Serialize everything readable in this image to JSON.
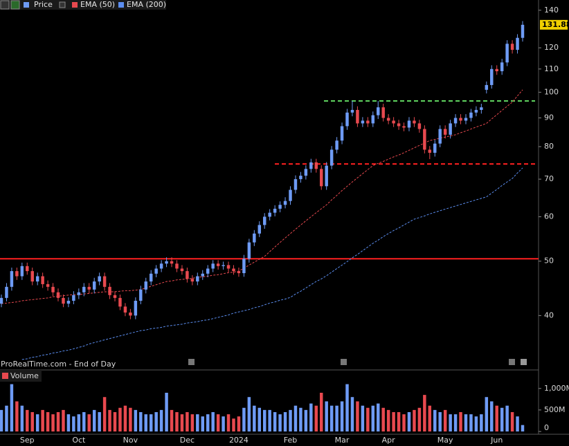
{
  "chart_data": [
    {
      "type": "candlestick",
      "name": "Price",
      "log": true,
      "source": "ProRealTime.com - End of Day",
      "up_color": "#6e9bf5",
      "down_color": "#e8494f",
      "categories": [
        null,
        null,
        null,
        null,
        null,
        "Sep",
        null,
        null,
        null,
        null,
        null,
        null,
        null,
        null,
        null,
        "Oct",
        null,
        null,
        null,
        null,
        null,
        null,
        null,
        null,
        null,
        "Nov",
        null,
        null,
        null,
        null,
        null,
        null,
        null,
        null,
        null,
        null,
        "Dec",
        null,
        null,
        null,
        null,
        null,
        null,
        null,
        null,
        null,
        "2024",
        null,
        null,
        null,
        null,
        null,
        null,
        null,
        null,
        null,
        "Feb",
        null,
        null,
        null,
        null,
        null,
        null,
        null,
        null,
        null,
        "Mar",
        null,
        null,
        null,
        null,
        null,
        null,
        null,
        null,
        "Apr",
        null,
        null,
        null,
        null,
        null,
        null,
        null,
        null,
        null,
        null,
        "May",
        null,
        null,
        null,
        null,
        null,
        null,
        null,
        null,
        null,
        "Jun",
        null,
        null,
        null,
        null,
        null
      ],
      "open": [
        42,
        43,
        45,
        48,
        47,
        49,
        48,
        46,
        47,
        45.5,
        45,
        44,
        43,
        42,
        42.5,
        43.5,
        44,
        45,
        44.5,
        46,
        47,
        45,
        43.5,
        43,
        41.5,
        40.5,
        40,
        42.5,
        44.5,
        46,
        47.5,
        48.5,
        49.5,
        50,
        49.5,
        48.5,
        48,
        46.5,
        46,
        47,
        47.5,
        48.5,
        49.5,
        49,
        49.2,
        48.5,
        48,
        47.6,
        50.5,
        54,
        56,
        58,
        60,
        61,
        62,
        63,
        64,
        67,
        70,
        71,
        73,
        75,
        73,
        68,
        74,
        79,
        82,
        87,
        92,
        93,
        88,
        89,
        88,
        91,
        94,
        90,
        89,
        88,
        87,
        86.5,
        89,
        88,
        86,
        79,
        78,
        81,
        86,
        84,
        88,
        90,
        89,
        90,
        92,
        93,
        101,
        103,
        110,
        109,
        113,
        122,
        119,
        125
      ],
      "high": [
        43.6,
        45.7,
        48.7,
        48.7,
        49.7,
        49.7,
        48.7,
        47.7,
        47.7,
        46.2,
        45.7,
        44.7,
        43.6,
        43.1,
        44.2,
        44.7,
        45.7,
        45.7,
        46.7,
        47.7,
        47.7,
        45.7,
        44.2,
        43.6,
        42.1,
        41.1,
        43.1,
        45.2,
        46.7,
        48.2,
        49.2,
        50.2,
        50.8,
        50.8,
        50.2,
        49.2,
        48.7,
        47.2,
        47.7,
        48.2,
        49.2,
        50.2,
        50.2,
        49.9,
        49.9,
        49.2,
        48.7,
        51.3,
        54.8,
        56.8,
        58.9,
        60.9,
        61.9,
        62.9,
        63.9,
        65,
        68,
        71.1,
        72.1,
        74.1,
        76.1,
        76.1,
        74.1,
        75.1,
        80.2,
        83.2,
        88.3,
        93.4,
        96.5,
        94.4,
        90.3,
        90.3,
        92.4,
        96.5,
        95.4,
        91.4,
        90.3,
        89.3,
        88.3,
        90.3,
        90.3,
        89.3,
        87.3,
        80.2,
        82.2,
        87.3,
        87.3,
        89.3,
        91.4,
        91.4,
        91.4,
        93.4,
        94.4,
        95.4,
        104.5,
        111.7,
        111.7,
        114.7,
        123.8,
        123.8,
        126.9,
        133.9
      ],
      "low": [
        41.4,
        42.4,
        44.3,
        46.3,
        46.3,
        47.3,
        45.3,
        45.3,
        44.8,
        44.3,
        43.3,
        42.4,
        41.4,
        41.4,
        41.9,
        42.8,
        43.3,
        43.8,
        43.8,
        45.3,
        44.3,
        42.8,
        42.4,
        40.9,
        39.9,
        39.4,
        39.4,
        41.9,
        43.8,
        45.3,
        46.8,
        47.8,
        48.8,
        48.8,
        47.8,
        47.3,
        45.8,
        45.3,
        45.3,
        46.3,
        46.8,
        47.8,
        48.3,
        48.3,
        47.8,
        47.3,
        46.9,
        46.9,
        49.7,
        53.2,
        55.2,
        57.1,
        59.1,
        60.1,
        61.1,
        62.1,
        63,
        66,
        69,
        69.9,
        71.9,
        71.9,
        67,
        67,
        72.9,
        77.8,
        80.8,
        85.7,
        90.6,
        86.7,
        86.7,
        86.7,
        86.7,
        89.6,
        88.7,
        87.7,
        86.7,
        85.7,
        85.2,
        85.2,
        86.7,
        84.7,
        77.8,
        76,
        76.8,
        79.8,
        82.7,
        82.7,
        86.7,
        87.7,
        87.7,
        88.7,
        90.6,
        91.6,
        99.5,
        101.5,
        107.4,
        107.4,
        111.3,
        117.2,
        117.2,
        123.1
      ],
      "close": [
        43,
        45,
        48,
        47,
        49,
        48,
        46,
        47,
        45.5,
        45,
        44,
        43,
        42,
        42.5,
        43.5,
        44,
        45,
        44.5,
        46,
        47,
        45,
        43.5,
        43,
        41.5,
        40.5,
        40,
        42.5,
        44.5,
        46,
        47.5,
        48.5,
        49.5,
        50,
        49.5,
        48.5,
        48,
        46.5,
        46,
        47,
        47.5,
        48.5,
        49.5,
        49,
        49.2,
        48.5,
        48,
        47.6,
        50.5,
        54,
        56,
        58,
        60,
        61,
        62,
        63,
        64,
        67,
        70,
        71,
        73,
        75,
        73,
        68,
        74,
        79,
        82,
        87,
        92,
        93,
        88,
        89,
        88,
        91,
        94,
        90,
        89,
        88,
        87,
        86.5,
        89,
        88,
        86,
        79,
        78,
        81,
        86,
        84,
        88,
        90,
        89,
        90,
        92,
        93,
        94,
        103,
        110,
        109,
        113,
        122,
        119,
        125,
        131.88
      ],
      "series": [
        {
          "name": "EMA (50)",
          "color": "#e8494f",
          "values": [
            42,
            42.1,
            42.2,
            42.3,
            42.5,
            42.6,
            42.7,
            42.8,
            42.9,
            43.0,
            43.2,
            43.3,
            43.4,
            43.5,
            43.6,
            43.6,
            43.7,
            43.8,
            43.9,
            44.0,
            44.1,
            44.1,
            44.1,
            44.2,
            44.3,
            44.3,
            44.4,
            44.5,
            44.8,
            45.1,
            45.4,
            45.7,
            46,
            46.1,
            46.3,
            46.4,
            46.5,
            46.6,
            46.8,
            46.9,
            47,
            47.2,
            47.3,
            47.5,
            47.7,
            47.8,
            48,
            48.6,
            49.2,
            49.8,
            50.4,
            51,
            52,
            53,
            54,
            55,
            56,
            57,
            58,
            59,
            60,
            61,
            62,
            63,
            64.3,
            65.5,
            66.8,
            68,
            69.2,
            70.4,
            71.6,
            72.8,
            74,
            74.7,
            75.3,
            76,
            76.7,
            77.3,
            78,
            78.8,
            79.6,
            80.4,
            81.2,
            82,
            82.4,
            82.8,
            83.2,
            83.6,
            84,
            84.7,
            85.3,
            86,
            86.7,
            87.3,
            88,
            89.6,
            91.2,
            92.8,
            94.4,
            96,
            98.5,
            101
          ]
        },
        {
          "name": "EMA (200)",
          "color": "#5b8def",
          "values": [
            null,
            null,
            null,
            null,
            33.4,
            33.5,
            33.7,
            33.8,
            34.0,
            34.1,
            34.3,
            34.4,
            34.6,
            34.7,
            34.9,
            35.1,
            35.3,
            35.6,
            35.8,
            36.0,
            36.2,
            36.4,
            36.6,
            36.8,
            37.0,
            37.2,
            37.4,
            37.6,
            37.7,
            37.9,
            38.0,
            38.1,
            38.3,
            38.4,
            38.5,
            38.6,
            38.8,
            38.9,
            39.0,
            39.2,
            39.3,
            39.5,
            39.7,
            39.9,
            40.1,
            40.4,
            40.6,
            40.8,
            41,
            41.3,
            41.5,
            41.8,
            42.1,
            42.3,
            42.6,
            42.8,
            43.1,
            43.7,
            44.2,
            44.8,
            45.4,
            46,
            46.5,
            47.1,
            47.8,
            48.5,
            49.2,
            49.9,
            50.7,
            51.4,
            52.2,
            53,
            53.8,
            54.5,
            55.3,
            56,
            56.7,
            57.3,
            58,
            58.7,
            59.4,
            59.8,
            60.2,
            60.7,
            61.1,
            61.5,
            61.9,
            62.3,
            62.7,
            63.1,
            63.5,
            63.9,
            64.3,
            64.7,
            65.1,
            66.1,
            67.1,
            68.2,
            69.2,
            70.2,
            71.8,
            73.3
          ]
        }
      ],
      "hlines": [
        {
          "value": 50.5,
          "color": "#ff2020",
          "style": "solid"
        },
        {
          "value": 74.5,
          "color": "#ff2020",
          "style": "dashed"
        },
        {
          "value": 96.5,
          "color": "#5fd35f",
          "style": "dashed"
        }
      ],
      "ylim": [
        32,
        146
      ],
      "yticks": [
        40,
        50,
        60,
        70,
        80,
        90,
        100,
        110,
        120,
        140
      ]
    },
    {
      "type": "bar",
      "title": "Volume",
      "values": [
        500000000.0,
        600000000.0,
        1100000000.0,
        700000000.0,
        600000000.0,
        500000000.0,
        450000000.0,
        400000000.0,
        500000000.0,
        450000000.0,
        400000000.0,
        450000000.0,
        500000000.0,
        400000000.0,
        350000000.0,
        400000000.0,
        450000000.0,
        400000000.0,
        500000000.0,
        450000000.0,
        800000000.0,
        500000000.0,
        450000000.0,
        550000000.0,
        600000000.0,
        550000000.0,
        500000000.0,
        450000000.0,
        400000000.0,
        400000000.0,
        450000000.0,
        500000000.0,
        900000000.0,
        500000000.0,
        450000000.0,
        400000000.0,
        450000000.0,
        400000000.0,
        400000000.0,
        350000000.0,
        400000000.0,
        450000000.0,
        400000000.0,
        350000000.0,
        400000000.0,
        300000000.0,
        350000000.0,
        550000000.0,
        800000000.0,
        600000000.0,
        550000000.0,
        500000000.0,
        500000000.0,
        450000000.0,
        400000000.0,
        450000000.0,
        500000000.0,
        600000000.0,
        550000000.0,
        500000000.0,
        650000000.0,
        600000000.0,
        900000000.0,
        700000000.0,
        600000000.0,
        600000000.0,
        700000000.0,
        1100000000.0,
        800000000.0,
        700000000.0,
        600000000.0,
        550000000.0,
        600000000.0,
        650000000.0,
        550000000.0,
        500000000.0,
        450000000.0,
        450000000.0,
        400000000.0,
        450000000.0,
        500000000.0,
        550000000.0,
        850000000.0,
        600000000.0,
        500000000.0,
        450000000.0,
        500000000.0,
        400000000.0,
        400000000.0,
        450000000.0,
        400000000.0,
        400000000.0,
        350000000.0,
        400000000.0,
        800000000.0,
        700000000.0,
        600000000.0,
        550000000.0,
        600000000.0,
        450000000.0,
        350000000.0,
        150000000.0
      ],
      "ylim": [
        0,
        1350000000
      ],
      "yticks": [
        {
          "value": 1000000000,
          "label": "1,000M"
        },
        {
          "value": 500000000,
          "label": "500M"
        },
        0
      ]
    }
  ]
}
